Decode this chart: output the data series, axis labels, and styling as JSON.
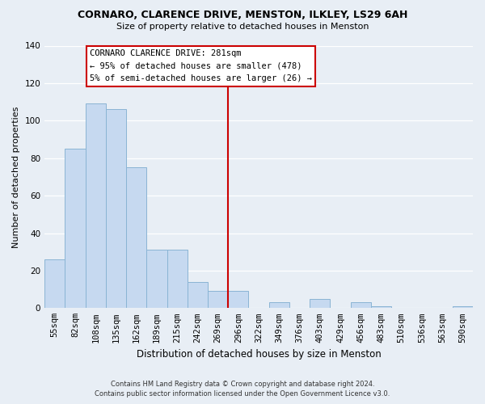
{
  "title": "CORNARO, CLARENCE DRIVE, MENSTON, ILKLEY, LS29 6AH",
  "subtitle": "Size of property relative to detached houses in Menston",
  "xlabel": "Distribution of detached houses by size in Menston",
  "ylabel": "Number of detached properties",
  "bar_labels": [
    "55sqm",
    "82sqm",
    "108sqm",
    "135sqm",
    "162sqm",
    "189sqm",
    "215sqm",
    "242sqm",
    "269sqm",
    "296sqm",
    "322sqm",
    "349sqm",
    "376sqm",
    "403sqm",
    "429sqm",
    "456sqm",
    "483sqm",
    "510sqm",
    "536sqm",
    "563sqm",
    "590sqm"
  ],
  "bar_heights": [
    26,
    85,
    109,
    106,
    75,
    31,
    31,
    14,
    9,
    9,
    0,
    3,
    0,
    5,
    0,
    3,
    1,
    0,
    0,
    0,
    1
  ],
  "bar_color": "#c6d9f0",
  "bar_edge_color": "#8ab4d4",
  "vline_color": "#cc0000",
  "annotation_title": "CORNARO CLARENCE DRIVE: 281sqm",
  "annotation_line1": "← 95% of detached houses are smaller (478)",
  "annotation_line2": "5% of semi-detached houses are larger (26) →",
  "annotation_box_color": "#cc0000",
  "annotation_fill": "#ffffff",
  "footnote1": "Contains HM Land Registry data © Crown copyright and database right 2024.",
  "footnote2": "Contains public sector information licensed under the Open Government Licence v3.0.",
  "ylim": [
    0,
    140
  ],
  "yticks": [
    0,
    20,
    40,
    60,
    80,
    100,
    120,
    140
  ],
  "grid_color": "#ffffff",
  "bg_color": "#e8eef5"
}
